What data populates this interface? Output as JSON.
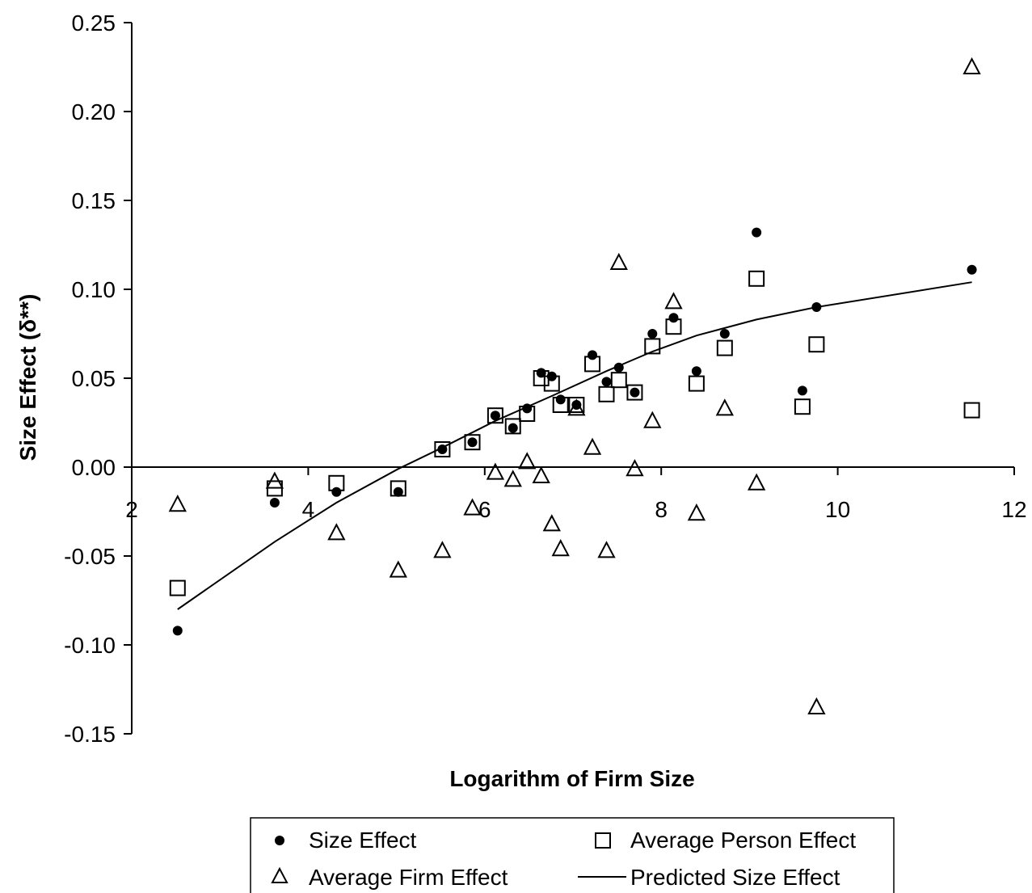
{
  "chart_data": {
    "type": "scatter",
    "title": "",
    "xlabel": "Logarithm of Firm Size",
    "ylabel": "Size Effect (δ**)",
    "xlim": [
      2,
      12
    ],
    "ylim": [
      -0.15,
      0.25
    ],
    "x_ticks": [
      "2",
      "4",
      "6",
      "8",
      "10",
      "12"
    ],
    "y_ticks": [
      "-0.15",
      "-0.10",
      "-0.05",
      "0.00",
      "0.05",
      "0.10",
      "0.15",
      "0.20",
      "0.25"
    ],
    "grid": false,
    "legend_position": "bottom",
    "series": [
      {
        "name": "Size Effect",
        "marker": "filled-circle",
        "points": [
          [
            2.52,
            -0.092
          ],
          [
            3.62,
            -0.02
          ],
          [
            4.32,
            -0.014
          ],
          [
            5.02,
            -0.014
          ],
          [
            5.52,
            0.01
          ],
          [
            5.86,
            0.014
          ],
          [
            6.12,
            0.029
          ],
          [
            6.32,
            0.022
          ],
          [
            6.48,
            0.033
          ],
          [
            6.64,
            0.053
          ],
          [
            6.76,
            0.051
          ],
          [
            6.86,
            0.038
          ],
          [
            7.04,
            0.035
          ],
          [
            7.22,
            0.063
          ],
          [
            7.38,
            0.048
          ],
          [
            7.52,
            0.056
          ],
          [
            7.7,
            0.042
          ],
          [
            7.9,
            0.075
          ],
          [
            8.14,
            0.084
          ],
          [
            8.4,
            0.054
          ],
          [
            8.72,
            0.075
          ],
          [
            9.08,
            0.132
          ],
          [
            9.6,
            0.043
          ],
          [
            9.76,
            0.09
          ],
          [
            11.52,
            0.111
          ]
        ]
      },
      {
        "name": "Average Person Effect",
        "marker": "open-square",
        "points": [
          [
            2.52,
            -0.068
          ],
          [
            3.62,
            -0.012
          ],
          [
            4.32,
            -0.009
          ],
          [
            5.02,
            -0.012
          ],
          [
            5.52,
            0.01
          ],
          [
            5.86,
            0.014
          ],
          [
            6.12,
            0.029
          ],
          [
            6.32,
            0.023
          ],
          [
            6.48,
            0.03
          ],
          [
            6.64,
            0.05
          ],
          [
            6.76,
            0.047
          ],
          [
            6.86,
            0.035
          ],
          [
            7.04,
            0.035
          ],
          [
            7.22,
            0.058
          ],
          [
            7.38,
            0.041
          ],
          [
            7.52,
            0.049
          ],
          [
            7.7,
            0.042
          ],
          [
            7.9,
            0.068
          ],
          [
            8.14,
            0.079
          ],
          [
            8.4,
            0.047
          ],
          [
            8.72,
            0.067
          ],
          [
            9.08,
            0.106
          ],
          [
            9.6,
            0.034
          ],
          [
            9.76,
            0.069
          ],
          [
            11.52,
            0.032
          ]
        ]
      },
      {
        "name": "Average Firm Effect",
        "marker": "open-triangle",
        "points": [
          [
            2.52,
            -0.021
          ],
          [
            3.62,
            -0.008
          ],
          [
            4.32,
            -0.037
          ],
          [
            5.02,
            -0.058
          ],
          [
            5.52,
            -0.047
          ],
          [
            5.86,
            -0.023
          ],
          [
            6.12,
            -0.003
          ],
          [
            6.32,
            -0.007
          ],
          [
            6.48,
            0.003
          ],
          [
            6.64,
            -0.005
          ],
          [
            6.76,
            -0.032
          ],
          [
            6.86,
            -0.046
          ],
          [
            7.04,
            0.033
          ],
          [
            7.22,
            0.011
          ],
          [
            7.38,
            -0.047
          ],
          [
            7.52,
            0.115
          ],
          [
            7.7,
            -0.001
          ],
          [
            7.9,
            0.026
          ],
          [
            8.14,
            0.093
          ],
          [
            8.4,
            -0.026
          ],
          [
            8.72,
            0.033
          ],
          [
            9.08,
            -0.009
          ],
          [
            9.76,
            -0.135
          ],
          [
            11.52,
            0.225
          ]
        ]
      },
      {
        "name": "Predicted Size Effect",
        "marker": "line",
        "points": [
          [
            2.52,
            -0.08
          ],
          [
            3.62,
            -0.042
          ],
          [
            4.32,
            -0.02
          ],
          [
            5.02,
            -0.001
          ],
          [
            5.52,
            0.011
          ],
          [
            6.12,
            0.026
          ],
          [
            6.76,
            0.04
          ],
          [
            7.38,
            0.054
          ],
          [
            7.9,
            0.065
          ],
          [
            8.4,
            0.074
          ],
          [
            9.08,
            0.083
          ],
          [
            9.76,
            0.09
          ],
          [
            11.52,
            0.104
          ]
        ]
      }
    ]
  }
}
